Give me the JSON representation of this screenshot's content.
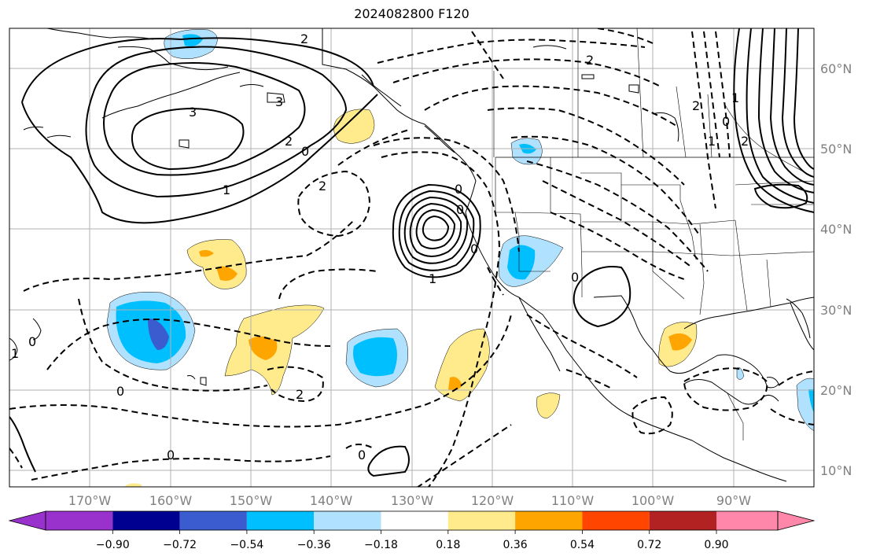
{
  "title": "2024082800 F120",
  "map": {
    "lon_range": [
      -180,
      -80
    ],
    "lat_range": [
      8,
      65
    ],
    "lat_labels": [
      "10°N",
      "20°N",
      "30°N",
      "40°N",
      "50°N",
      "60°N"
    ],
    "lon_labels": [
      "170°W",
      "160°W",
      "150°W",
      "140°W",
      "130°W",
      "120°W",
      "110°W",
      "100°W",
      "90°W"
    ],
    "contour_labels": [
      "2",
      "3",
      "3",
      "2",
      "0",
      "1",
      "2",
      "1",
      "0",
      "0",
      "0",
      "0",
      "2",
      "0",
      "0",
      "0",
      "2",
      "0",
      "1",
      "2",
      "1",
      "0",
      "1",
      "2"
    ],
    "colors": {
      "land_outline": "#000000",
      "grid": "#b0b0b0",
      "contour": "#000000"
    }
  },
  "colorbar": {
    "ticks": [
      "−0.90",
      "−0.72",
      "−0.54",
      "−0.36",
      "−0.18",
      "0.18",
      "0.36",
      "0.54",
      "0.72",
      "0.90"
    ],
    "colors": [
      "#9932cc",
      "#000090",
      "#3a5ccf",
      "#00bfff",
      "#b0e2ff",
      "#ffffff",
      "#ffeb8c",
      "#ffa500",
      "#ff4500",
      "#b22222",
      "#ff88aa"
    ]
  }
}
